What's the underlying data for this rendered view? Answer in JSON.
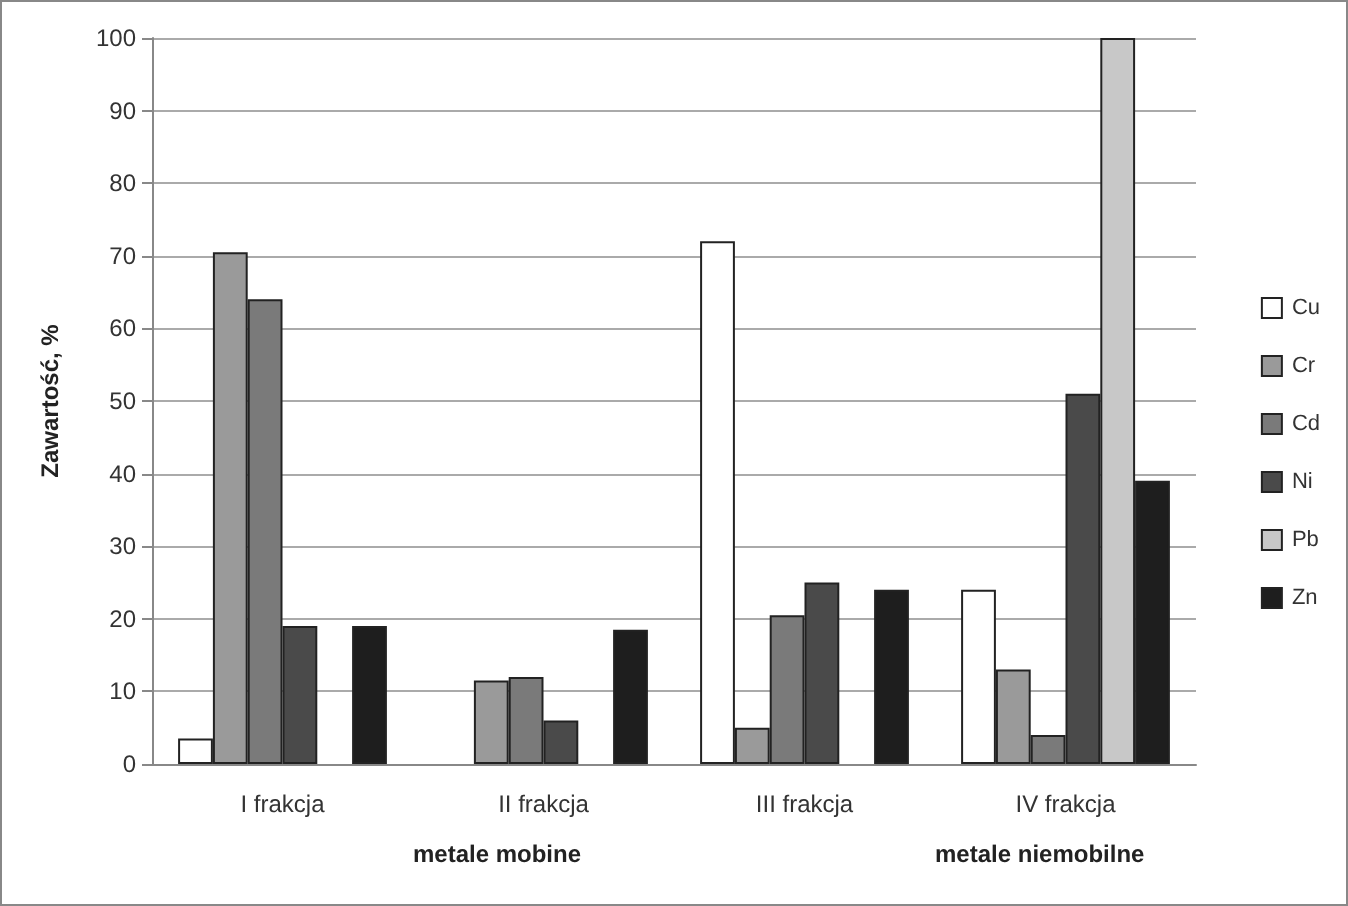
{
  "chart_data": {
    "type": "bar",
    "ylabel": "Zawartość, %",
    "categories": [
      "I frakcja",
      "II frakcja",
      "III frakcja",
      "IV frakcja"
    ],
    "series": [
      {
        "name": "Cu",
        "color": "#ffffff",
        "values": [
          3.5,
          null,
          72,
          24
        ]
      },
      {
        "name": "Cr",
        "color": "#9a9a9a",
        "values": [
          70.5,
          11.5,
          5,
          13
        ]
      },
      {
        "name": "Cd",
        "color": "#7a7a7a",
        "values": [
          64,
          12,
          20.5,
          4
        ]
      },
      {
        "name": "Ni",
        "color": "#4a4a4a",
        "values": [
          19,
          6,
          25,
          51
        ]
      },
      {
        "name": "Pb",
        "color": "#c8c8c8",
        "values": [
          null,
          null,
          null,
          100
        ]
      },
      {
        "name": "Zn",
        "color": "#1e1e1e",
        "values": [
          19,
          18.5,
          24,
          39
        ]
      }
    ],
    "annotations": [
      "metale mobine",
      "metale niemobilne"
    ],
    "ylim": [
      0,
      100
    ],
    "yticks": [
      0,
      10,
      20,
      30,
      40,
      50,
      60,
      70,
      80,
      90,
      100
    ],
    "grid": "y",
    "legend": "right"
  }
}
